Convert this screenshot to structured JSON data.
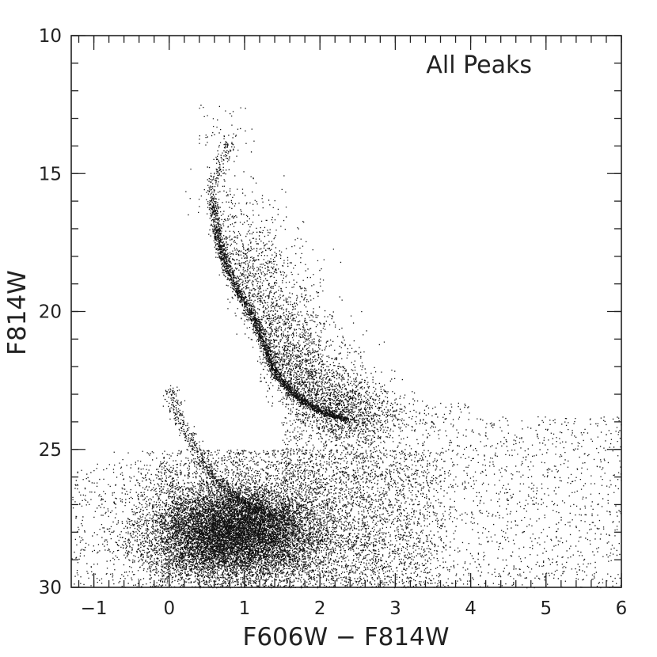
{
  "chart_data": {
    "type": "scatter",
    "title": "",
    "annotation": "All Peaks",
    "xlabel": "F606W − F814W",
    "ylabel": "F814W",
    "xlim": [
      -1.3,
      6.0
    ],
    "ylim": [
      30,
      10
    ],
    "y_inverted": true,
    "x_ticks": [
      -1,
      0,
      1,
      2,
      3,
      4,
      5,
      6
    ],
    "x_tick_labels": [
      "−1",
      "0",
      "1",
      "2",
      "3",
      "4",
      "5",
      "6"
    ],
    "y_ticks": [
      10,
      15,
      20,
      25,
      30
    ],
    "y_tick_labels": [
      "10",
      "15",
      "20",
      "25",
      "30"
    ],
    "x_minor_step": 0.2,
    "y_minor_step": 1,
    "grid": false,
    "legend": "none",
    "point_color": "#111111",
    "series": [
      {
        "component": "main-sequence-ridge",
        "x": [
          0.58,
          0.62,
          0.68,
          0.78,
          0.9,
          1.05,
          1.18,
          1.28,
          1.36,
          1.45,
          1.58,
          1.75,
          1.95,
          2.15,
          2.35
        ],
        "y": [
          15.9,
          17.0,
          17.8,
          18.5,
          19.2,
          19.9,
          20.6,
          21.3,
          21.9,
          22.4,
          22.8,
          23.2,
          23.5,
          23.75,
          23.9
        ]
      },
      {
        "component": "upper-giant-branch",
        "x": [
          0.55,
          0.6,
          0.68,
          0.78
        ],
        "y": [
          15.9,
          15.2,
          14.5,
          13.8
        ]
      },
      {
        "component": "white-dwarf-sequence",
        "x": [
          0.0,
          0.15,
          0.35,
          0.55,
          0.8,
          1.1,
          1.4
        ],
        "y": [
          22.8,
          24.0,
          25.0,
          25.9,
          26.6,
          27.1,
          27.4
        ]
      },
      {
        "component": "faint-concentration",
        "x": [
          0.85
        ],
        "y": [
          28.0
        ]
      }
    ]
  }
}
